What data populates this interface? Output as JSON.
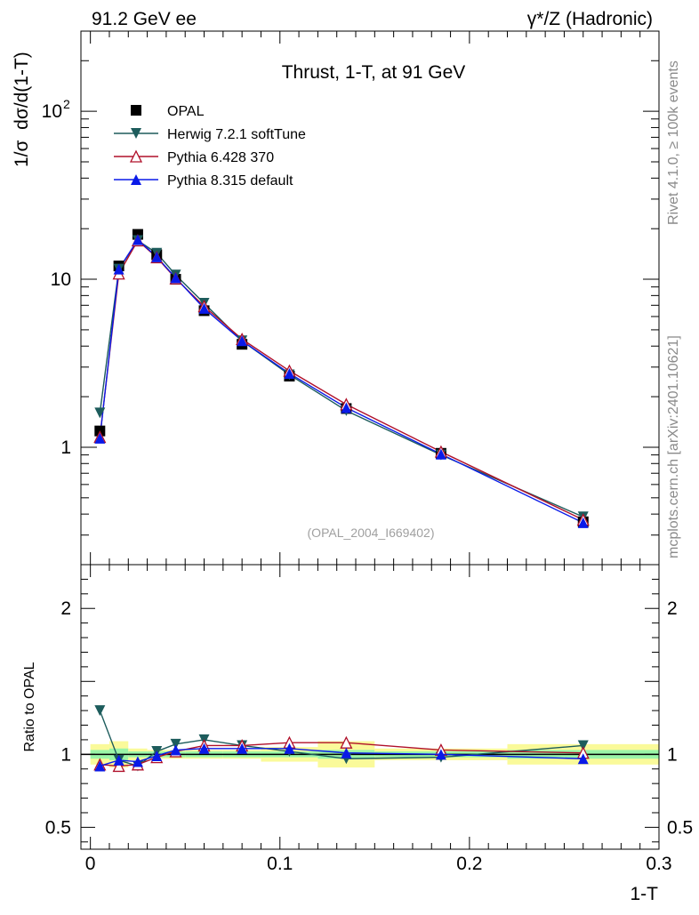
{
  "header": {
    "left": "91.2 GeV ee",
    "right": "γ*/Z (Hadronic)"
  },
  "side_labels": {
    "rivet": "Rivet 4.1.0, ≥ 100k events",
    "mcplots": "mcplots.cern.ch [arXiv:2401.10621]"
  },
  "chart_data": [
    {
      "panel": "main",
      "type": "line",
      "title": "Thrust, 1-T, at 91 GeV",
      "watermark": "(OPAL_2004_I669402)",
      "xlabel": "1-T",
      "ylabel": "1/σ  dσ/d(1-T)",
      "yscale": "log",
      "xlim": [
        -0.005,
        0.3
      ],
      "ylim": [
        0.2,
        300
      ],
      "legend_position": "top-left",
      "y_ticks": [
        {
          "value": 1,
          "label": "1"
        },
        {
          "value": 10,
          "label": "10"
        },
        {
          "value": 100,
          "label": "10²"
        }
      ],
      "x": [
        0.005,
        0.015,
        0.025,
        0.035,
        0.045,
        0.06,
        0.08,
        0.105,
        0.135,
        0.185,
        0.26
      ],
      "series": [
        {
          "name": "OPAL",
          "marker": "square",
          "color": "#000000",
          "values": [
            1.25,
            12.0,
            18.5,
            14.0,
            10.0,
            6.5,
            4.1,
            2.65,
            1.7,
            0.92,
            0.36
          ]
        },
        {
          "name": "Herwig 7.2.1 softTune",
          "marker": "triangle-down",
          "color": "#1d5c5c",
          "values": [
            1.6,
            11.5,
            17.0,
            14.3,
            10.6,
            7.2,
            4.3,
            2.7,
            1.65,
            0.9,
            0.385
          ]
        },
        {
          "name": "Pythia 6.428 370",
          "marker": "triangle-up-open",
          "color": "#b0102a",
          "values": [
            1.15,
            10.8,
            17.0,
            13.5,
            10.1,
            6.9,
            4.4,
            2.85,
            1.8,
            0.94,
            0.37
          ]
        },
        {
          "name": "Pythia 8.315 default",
          "marker": "triangle-up",
          "color": "#0a1ae8",
          "values": [
            1.13,
            11.5,
            17.2,
            13.6,
            10.2,
            6.7,
            4.3,
            2.75,
            1.72,
            0.91,
            0.355
          ]
        }
      ]
    },
    {
      "panel": "ratio",
      "type": "line",
      "ylabel": "Ratio to OPAL",
      "xlabel": "1-T",
      "xlim": [
        -0.005,
        0.3
      ],
      "ylim": [
        0.35,
        2.3
      ],
      "y_ticks": [
        {
          "value": 0.5,
          "label": "0.5"
        },
        {
          "value": 1,
          "label": "1"
        },
        {
          "value": 2,
          "label": "2"
        }
      ],
      "x_ticks": [
        {
          "value": 0,
          "label": "0"
        },
        {
          "value": 0.1,
          "label": "0.1"
        },
        {
          "value": 0.2,
          "label": "0.2"
        },
        {
          "value": 0.3,
          "label": "0.3"
        }
      ],
      "x": [
        0.005,
        0.015,
        0.025,
        0.035,
        0.045,
        0.06,
        0.08,
        0.105,
        0.135,
        0.185,
        0.26
      ],
      "bins": [
        [
          0,
          0.01
        ],
        [
          0.01,
          0.02
        ],
        [
          0.02,
          0.03
        ],
        [
          0.03,
          0.04
        ],
        [
          0.04,
          0.05
        ],
        [
          0.05,
          0.07
        ],
        [
          0.07,
          0.09
        ],
        [
          0.09,
          0.12
        ],
        [
          0.12,
          0.15
        ],
        [
          0.15,
          0.22
        ],
        [
          0.22,
          0.3
        ]
      ],
      "uncertainty_stat": [
        0.03,
        0.04,
        0.02,
        0.02,
        0.02,
        0.02,
        0.02,
        0.02,
        0.03,
        0.02,
        0.03
      ],
      "uncertainty_total": [
        0.07,
        0.09,
        0.04,
        0.03,
        0.03,
        0.03,
        0.03,
        0.05,
        0.09,
        0.04,
        0.07
      ],
      "series": [
        {
          "name": "Herwig 7.2.1 softTune",
          "marker": "triangle-down",
          "color": "#1d5c5c",
          "values": [
            1.3,
            0.96,
            0.92,
            1.02,
            1.07,
            1.1,
            1.06,
            1.02,
            0.97,
            0.98,
            1.06
          ]
        },
        {
          "name": "Pythia 6.428 370",
          "marker": "triangle-up-open",
          "color": "#b0102a",
          "values": [
            0.93,
            0.92,
            0.93,
            0.98,
            1.02,
            1.06,
            1.06,
            1.08,
            1.08,
            1.03,
            1.01
          ]
        },
        {
          "name": "Pythia 8.315 default",
          "marker": "triangle-up",
          "color": "#0a1ae8",
          "values": [
            0.92,
            0.96,
            0.95,
            0.99,
            1.03,
            1.04,
            1.04,
            1.04,
            1.01,
            1.0,
            0.97
          ]
        }
      ]
    }
  ]
}
